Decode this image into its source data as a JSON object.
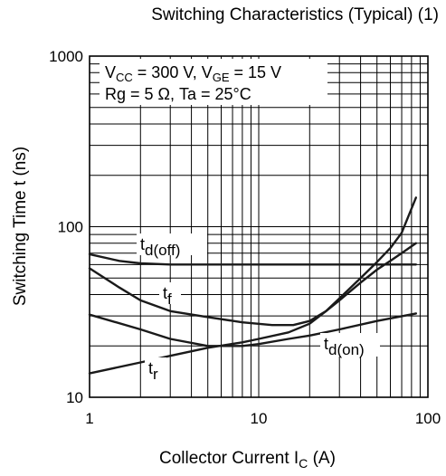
{
  "chart_data": {
    "type": "line",
    "title": "Switching Characteristics (Typical) (1)",
    "xlabel": {
      "main": "Collector Current",
      "sym": "I",
      "sub": "C",
      "unit": "(A)"
    },
    "ylabel": "Switching Time  t  (ns)",
    "xscale": "log",
    "yscale": "log",
    "xlim": [
      1,
      100
    ],
    "ylim": [
      10,
      1000
    ],
    "xticks": [
      1,
      10,
      100
    ],
    "xtick_labels": [
      "1",
      "10",
      "100"
    ],
    "yticks": [
      10,
      100,
      1000
    ],
    "ytick_labels": [
      "10",
      "100",
      "1000"
    ],
    "grid": true,
    "conditions": {
      "line1": [
        {
          "t": "V",
          "s": "n"
        },
        {
          "t": "CC",
          "s": "sub"
        },
        {
          "t": " = 300 V, V",
          "s": "n"
        },
        {
          "t": "GE",
          "s": "sub"
        },
        {
          "t": " = 15 V",
          "s": "n"
        }
      ],
      "line2": "Rg = 5 Ω, Ta = 25°C"
    },
    "series": [
      {
        "name": "td(off)",
        "label_main": "t",
        "label_sub": "d(off)",
        "x": [
          1,
          1.5,
          2,
          3,
          5,
          10,
          20,
          50,
          85
        ],
        "y": [
          69,
          63,
          61,
          60,
          60,
          60,
          60,
          60,
          60
        ]
      },
      {
        "name": "tf",
        "label_main": "t",
        "label_sub": "f",
        "x": [
          1,
          1.5,
          2,
          3,
          5,
          8,
          12,
          16,
          20,
          25,
          30,
          40,
          50,
          60,
          70,
          85
        ],
        "y": [
          57,
          44,
          37,
          32,
          29.5,
          27.5,
          26.5,
          26.5,
          28,
          32,
          38,
          50,
          62,
          75,
          92,
          148
        ]
      },
      {
        "name": "td(on)",
        "label_main": "t",
        "label_sub": "d(on)",
        "x": [
          1,
          2,
          3,
          5,
          8,
          10,
          15,
          20,
          30,
          50,
          85
        ],
        "y": [
          30.5,
          25,
          22,
          20,
          20,
          20.5,
          22,
          23,
          25,
          28,
          31
        ]
      },
      {
        "name": "tr",
        "label_main": "t",
        "label_sub": "r",
        "x": [
          1,
          2,
          3,
          5,
          8,
          10,
          15,
          20,
          25,
          30,
          40,
          50,
          60,
          70,
          85
        ],
        "y": [
          13.8,
          16,
          17.5,
          19.5,
          21,
          22,
          24,
          27,
          32,
          37,
          47,
          56,
          63,
          70,
          80
        ]
      }
    ]
  }
}
